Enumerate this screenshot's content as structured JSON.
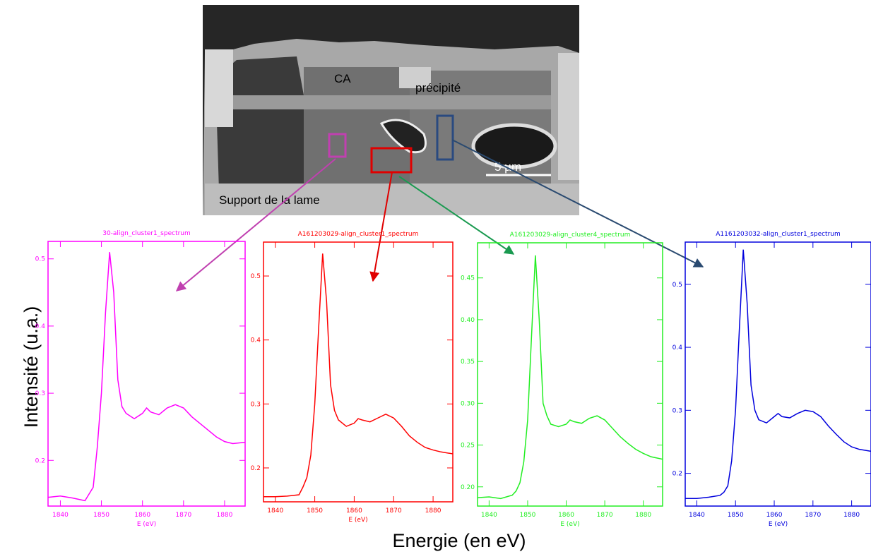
{
  "figure": {
    "ylabel": "Intensité (u.a.)",
    "xlabel": "Energie (en eV)"
  },
  "image": {
    "labels": [
      "CA",
      "précipité",
      "Support de la lame"
    ],
    "scale_bar": "5 µm"
  },
  "chart_data": [
    {
      "type": "line",
      "title": "30-align_cluster1_spectrum",
      "xlabel": "E (eV)",
      "x": [
        1837,
        1840,
        1843,
        1846,
        1847,
        1848,
        1849,
        1850,
        1851,
        1852,
        1853,
        1854,
        1855,
        1856,
        1858,
        1860,
        1861,
        1862,
        1864,
        1866,
        1868,
        1870,
        1872,
        1874,
        1876,
        1878,
        1880,
        1882,
        1885
      ],
      "series": [
        {
          "color": "#ff00ff",
          "values": [
            0.145,
            0.147,
            0.144,
            0.14,
            0.15,
            0.16,
            0.22,
            0.3,
            0.42,
            0.51,
            0.45,
            0.32,
            0.28,
            0.27,
            0.262,
            0.27,
            0.278,
            0.272,
            0.268,
            0.278,
            0.283,
            0.278,
            0.265,
            0.255,
            0.245,
            0.235,
            0.228,
            0.225,
            0.227
          ]
        }
      ],
      "xlim": [
        1837,
        1885
      ],
      "ylim": [
        0.132,
        0.526
      ],
      "xticks": [
        1840,
        1850,
        1860,
        1870,
        1880
      ],
      "yticks": [
        0.2,
        0.3,
        0.4,
        0.5
      ]
    },
    {
      "type": "line",
      "title": "A161203029-align_cluster1_spectrum",
      "xlabel": "E (eV)",
      "x": [
        1837,
        1840,
        1843,
        1846,
        1847,
        1848,
        1849,
        1850,
        1851,
        1852,
        1853,
        1854,
        1855,
        1856,
        1858,
        1860,
        1861,
        1862,
        1864,
        1866,
        1868,
        1870,
        1872,
        1874,
        1876,
        1878,
        1880,
        1882,
        1885
      ],
      "series": [
        {
          "color": "#ff0000",
          "values": [
            0.155,
            0.155,
            0.156,
            0.158,
            0.17,
            0.185,
            0.22,
            0.3,
            0.42,
            0.535,
            0.46,
            0.33,
            0.29,
            0.275,
            0.265,
            0.27,
            0.277,
            0.275,
            0.272,
            0.278,
            0.284,
            0.278,
            0.265,
            0.25,
            0.24,
            0.232,
            0.228,
            0.225,
            0.222
          ]
        }
      ],
      "xlim": [
        1837,
        1885
      ],
      "ylim": [
        0.147,
        0.553
      ],
      "xticks": [
        1840,
        1850,
        1860,
        1870,
        1880
      ],
      "yticks": [
        0.2,
        0.3,
        0.4,
        0.5
      ]
    },
    {
      "type": "line",
      "title": "A161203029-align_cluster4_spectrum",
      "xlabel": "E (eV)",
      "x": [
        1837,
        1840,
        1843,
        1846,
        1847,
        1848,
        1849,
        1850,
        1851,
        1852,
        1853,
        1854,
        1855,
        1856,
        1858,
        1860,
        1861,
        1862,
        1864,
        1866,
        1868,
        1870,
        1872,
        1874,
        1876,
        1878,
        1880,
        1882,
        1885
      ],
      "series": [
        {
          "color": "#22ee22",
          "values": [
            0.187,
            0.188,
            0.186,
            0.19,
            0.195,
            0.205,
            0.23,
            0.28,
            0.38,
            0.477,
            0.4,
            0.3,
            0.285,
            0.275,
            0.272,
            0.275,
            0.28,
            0.278,
            0.276,
            0.282,
            0.285,
            0.28,
            0.27,
            0.26,
            0.252,
            0.245,
            0.24,
            0.236,
            0.233
          ]
        }
      ],
      "xlim": [
        1837,
        1885
      ],
      "ylim": [
        0.177,
        0.492
      ],
      "xticks": [
        1840,
        1850,
        1860,
        1870,
        1880
      ],
      "yticks": [
        {
          "value": 0.2,
          "label": "0.20"
        },
        {
          "value": 0.25,
          "label": "0.25"
        },
        {
          "value": 0.3,
          "label": "0.30"
        },
        {
          "value": 0.35,
          "label": "0.35"
        },
        {
          "value": 0.4,
          "label": "0.40"
        },
        {
          "value": 0.45,
          "label": "0.45"
        }
      ]
    },
    {
      "type": "line",
      "title": "A1161203032-align_cluster1_spectrum",
      "xlabel": "E (eV)",
      "x": [
        1837,
        1840,
        1843,
        1846,
        1847,
        1848,
        1849,
        1850,
        1851,
        1852,
        1853,
        1854,
        1855,
        1856,
        1858,
        1860,
        1861,
        1862,
        1864,
        1866,
        1868,
        1870,
        1872,
        1874,
        1876,
        1878,
        1880,
        1882,
        1885
      ],
      "series": [
        {
          "color": "#0000dd",
          "values": [
            0.16,
            0.16,
            0.162,
            0.165,
            0.17,
            0.18,
            0.22,
            0.3,
            0.43,
            0.555,
            0.47,
            0.34,
            0.3,
            0.285,
            0.28,
            0.29,
            0.295,
            0.29,
            0.288,
            0.295,
            0.3,
            0.298,
            0.29,
            0.275,
            0.262,
            0.25,
            0.242,
            0.238,
            0.235
          ]
        }
      ],
      "xlim": [
        1837,
        1885
      ],
      "ylim": [
        0.148,
        0.567
      ],
      "xticks": [
        1840,
        1850,
        1860,
        1870,
        1880
      ],
      "yticks": [
        0.2,
        0.3,
        0.4,
        0.5
      ]
    }
  ]
}
